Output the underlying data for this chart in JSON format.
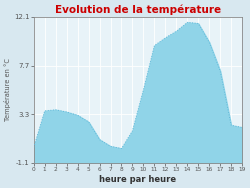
{
  "title": "Evolution de la température",
  "xlabel": "heure par heure",
  "ylabel": "Température en °C",
  "background_color": "#d8e8f0",
  "plot_bg_color": "#e8f3f8",
  "fill_color": "#90d4e8",
  "line_color": "#60b8d8",
  "title_color": "#cc0000",
  "ylim": [
    -1.1,
    12.1
  ],
  "yticks": [
    -1.1,
    3.3,
    7.7,
    12.1
  ],
  "ytick_labels": [
    "-1.1",
    "3.3",
    "7.7",
    "12.1"
  ],
  "hours": [
    0,
    1,
    2,
    3,
    4,
    5,
    6,
    7,
    8,
    9,
    10,
    11,
    12,
    13,
    14,
    15,
    16,
    17,
    18,
    19
  ],
  "temperatures": [
    0.3,
    3.6,
    3.7,
    3.5,
    3.2,
    2.6,
    1.0,
    0.4,
    0.2,
    1.8,
    5.5,
    9.5,
    10.2,
    10.8,
    11.6,
    11.5,
    9.8,
    7.2,
    2.3,
    2.1
  ],
  "xtick_labels": [
    "0",
    "1",
    "2",
    "3",
    "4",
    "5",
    "6",
    "7",
    "8",
    "9",
    "10",
    "11",
    "12",
    "13",
    "14",
    "15",
    "16",
    "17",
    "18",
    "19"
  ],
  "title_fontsize": 7.5,
  "xlabel_fontsize": 6.0,
  "ylabel_fontsize": 4.8,
  "xtick_fontsize": 4.2,
  "ytick_fontsize": 5.0
}
